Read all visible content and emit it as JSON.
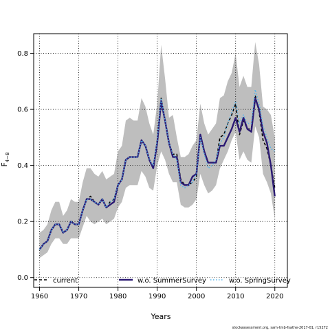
{
  "chart_data": {
    "type": "line",
    "xlabel": "Years",
    "ylabel": "F",
    "ylabel_sub": "4−8",
    "xlim": [
      1958.5,
      2023.2
    ],
    "ylim": [
      -0.035,
      0.87
    ],
    "xticks": [
      1960,
      1970,
      1980,
      1990,
      2000,
      2010,
      2020
    ],
    "yticks": [
      0.0,
      0.2,
      0.4,
      0.6,
      0.8
    ],
    "grid": true,
    "legend_position": "bottom",
    "footer": "stockassessment.org, sam-tmb-fsathe-2017-01, r15272",
    "x": [
      1960,
      1961,
      1962,
      1963,
      1964,
      1965,
      1966,
      1967,
      1968,
      1969,
      1970,
      1971,
      1972,
      1973,
      1974,
      1975,
      1976,
      1977,
      1978,
      1979,
      1980,
      1981,
      1982,
      1983,
      1984,
      1985,
      1986,
      1987,
      1988,
      1989,
      1990,
      1991,
      1992,
      1993,
      1994,
      1995,
      1996,
      1997,
      1998,
      1999,
      2000,
      2001,
      2002,
      2003,
      2004,
      2005,
      2006,
      2007,
      2008,
      2009,
      2010,
      2011,
      2012,
      2013,
      2014,
      2015,
      2016,
      2017,
      2018,
      2019,
      2020
    ],
    "confidence_band": {
      "color": "#bebebe",
      "lower": [
        0.07,
        0.08,
        0.09,
        0.12,
        0.14,
        0.14,
        0.12,
        0.12,
        0.14,
        0.14,
        0.14,
        0.18,
        0.22,
        0.2,
        0.19,
        0.2,
        0.21,
        0.19,
        0.2,
        0.21,
        0.25,
        0.27,
        0.32,
        0.33,
        0.33,
        0.33,
        0.38,
        0.36,
        0.32,
        0.31,
        0.4,
        0.45,
        0.42,
        0.37,
        0.34,
        0.34,
        0.26,
        0.25,
        0.25,
        0.26,
        0.28,
        0.37,
        0.33,
        0.3,
        0.31,
        0.33,
        0.39,
        0.42,
        0.45,
        0.49,
        0.52,
        0.42,
        0.45,
        0.42,
        0.41,
        0.54,
        0.5,
        0.37,
        0.34,
        0.3,
        0.21
      ],
      "upper": [
        0.16,
        0.17,
        0.19,
        0.24,
        0.27,
        0.27,
        0.22,
        0.24,
        0.28,
        0.27,
        0.27,
        0.34,
        0.39,
        0.39,
        0.37,
        0.36,
        0.38,
        0.35,
        0.36,
        0.37,
        0.45,
        0.47,
        0.56,
        0.57,
        0.56,
        0.56,
        0.64,
        0.61,
        0.55,
        0.51,
        0.62,
        0.83,
        0.71,
        0.57,
        0.58,
        0.5,
        0.43,
        0.43,
        0.44,
        0.47,
        0.49,
        0.62,
        0.55,
        0.51,
        0.53,
        0.55,
        0.64,
        0.65,
        0.7,
        0.73,
        0.8,
        0.68,
        0.72,
        0.68,
        0.68,
        0.84,
        0.76,
        0.61,
        0.6,
        0.58,
        0.5
      ]
    },
    "series": [
      {
        "name": "current",
        "color": "#000000",
        "dash": "dashed",
        "width": 1.6,
        "values": [
          0.1,
          0.12,
          0.13,
          0.17,
          0.19,
          0.19,
          0.16,
          0.17,
          0.2,
          0.19,
          0.19,
          0.24,
          0.28,
          0.29,
          0.27,
          0.26,
          0.28,
          0.25,
          0.27,
          0.28,
          0.33,
          0.35,
          0.42,
          0.43,
          0.43,
          0.43,
          0.49,
          0.47,
          0.42,
          0.39,
          0.49,
          0.64,
          0.56,
          0.48,
          0.44,
          0.44,
          0.35,
          0.33,
          0.33,
          0.34,
          0.36,
          0.51,
          0.45,
          0.41,
          0.41,
          0.41,
          0.5,
          0.51,
          0.55,
          0.58,
          0.62,
          0.51,
          0.56,
          0.53,
          0.53,
          0.65,
          0.59,
          0.49,
          0.46,
          0.4,
          0.32
        ]
      },
      {
        "name": "w.o. SummerSurvey",
        "color": "#2b1a73",
        "dash": "solid",
        "width": 2.4,
        "values": [
          0.1,
          0.12,
          0.13,
          0.17,
          0.19,
          0.19,
          0.16,
          0.17,
          0.2,
          0.19,
          0.19,
          0.24,
          0.28,
          0.28,
          0.27,
          0.26,
          0.28,
          0.25,
          0.26,
          0.27,
          0.33,
          0.35,
          0.42,
          0.43,
          0.43,
          0.43,
          0.49,
          0.47,
          0.42,
          0.39,
          0.48,
          0.63,
          0.56,
          0.48,
          0.43,
          0.43,
          0.34,
          0.33,
          0.33,
          0.36,
          0.37,
          0.51,
          0.45,
          0.41,
          0.41,
          0.41,
          0.47,
          0.47,
          0.5,
          0.53,
          0.57,
          0.52,
          0.57,
          0.53,
          0.52,
          0.64,
          0.6,
          0.52,
          0.48,
          0.4,
          0.29
        ]
      },
      {
        "name": "w.o. SpringSurvey",
        "color": "#56b4e9",
        "dash": "dotted",
        "width": 1.6,
        "values": [
          0.1,
          0.12,
          0.13,
          0.17,
          0.19,
          0.19,
          0.16,
          0.17,
          0.2,
          0.19,
          0.19,
          0.24,
          0.28,
          0.28,
          0.27,
          0.26,
          0.28,
          0.25,
          0.27,
          0.28,
          0.33,
          0.35,
          0.42,
          0.43,
          0.43,
          0.43,
          0.49,
          0.47,
          0.42,
          0.4,
          0.49,
          0.64,
          0.56,
          0.48,
          0.44,
          0.42,
          0.33,
          0.32,
          0.33,
          0.34,
          0.37,
          0.5,
          0.44,
          0.39,
          0.4,
          0.42,
          0.48,
          0.5,
          0.55,
          0.59,
          0.63,
          0.55,
          0.58,
          0.55,
          0.55,
          0.67,
          0.62,
          0.54,
          0.5,
          0.46,
          0.45
        ]
      }
    ]
  }
}
